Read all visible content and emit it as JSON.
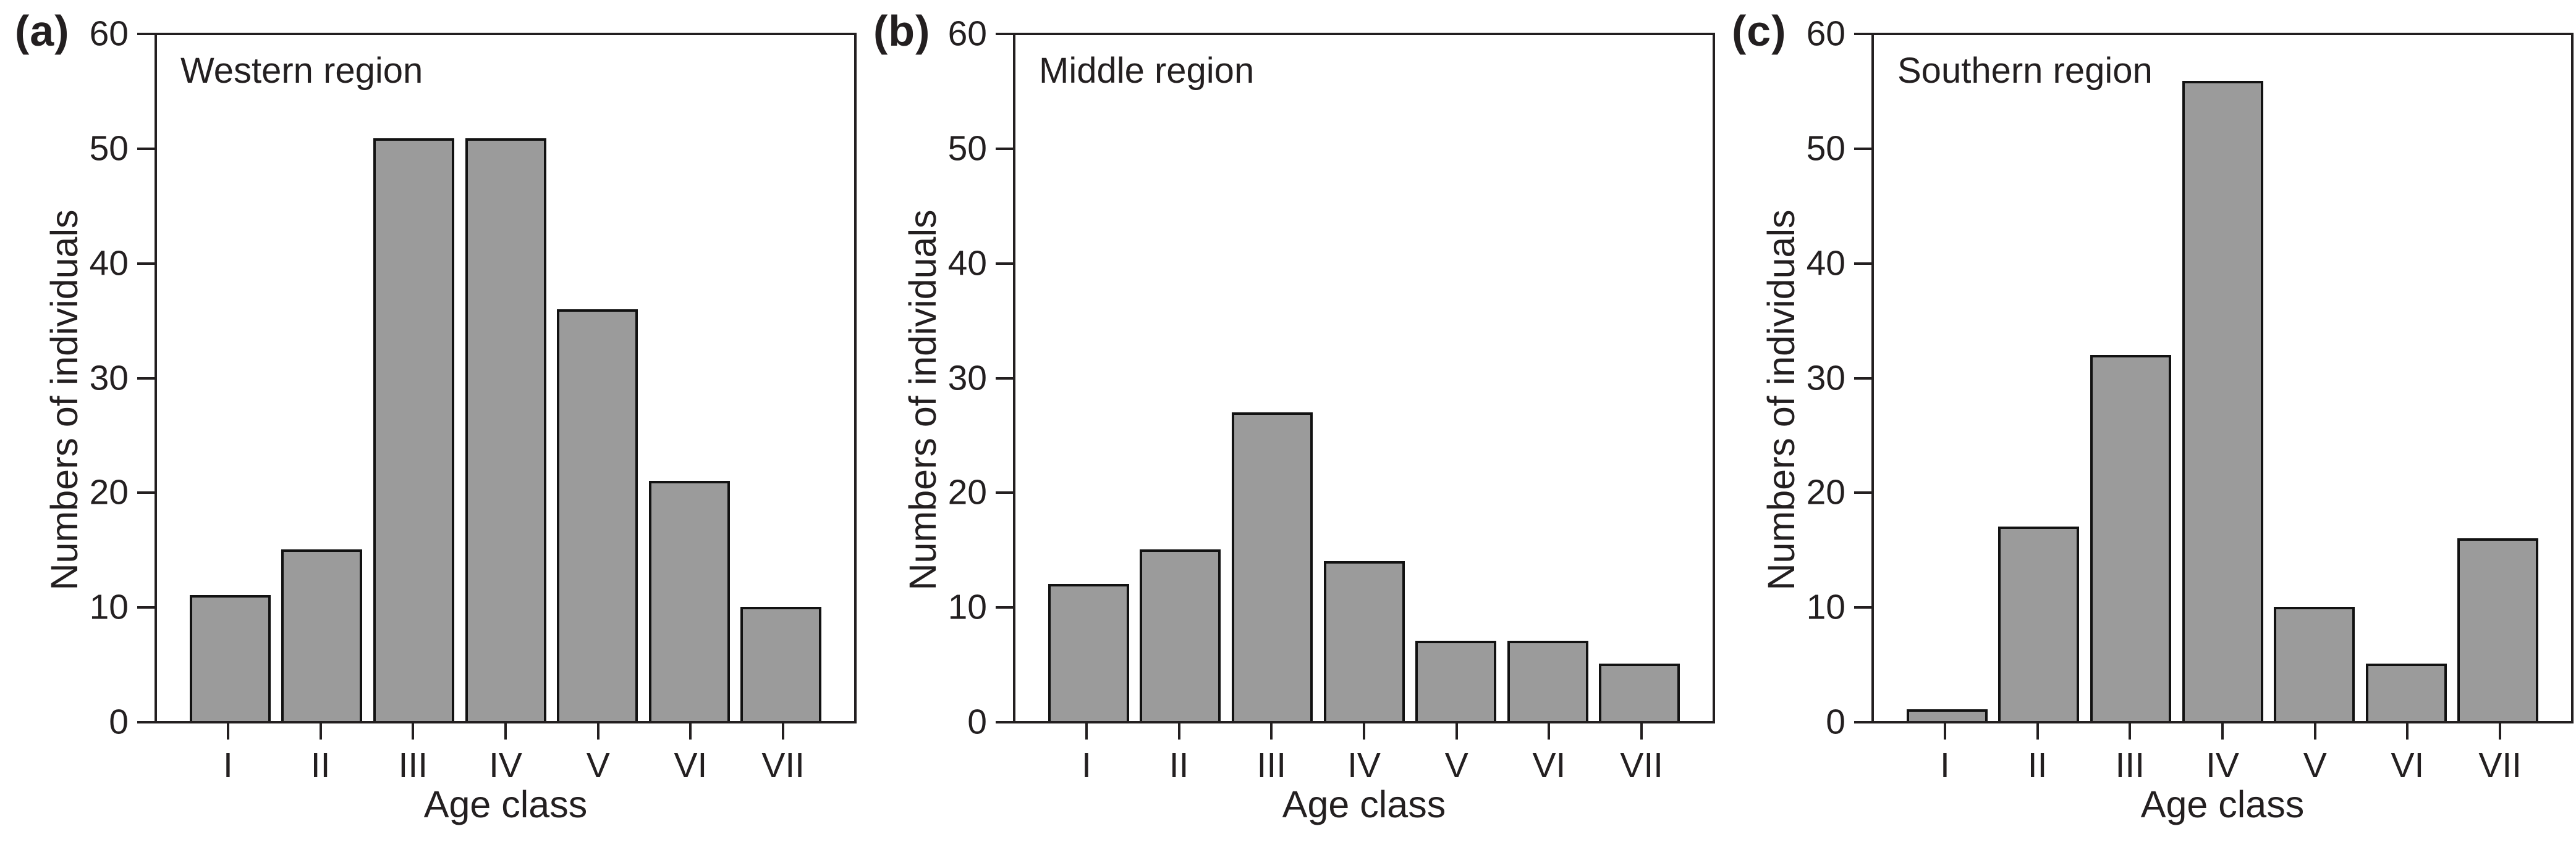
{
  "chart_data": [
    {
      "type": "bar",
      "panel_label": "(a)",
      "title": "Western region",
      "categories": [
        "I",
        "II",
        "III",
        "IV",
        "V",
        "VI",
        "VII"
      ],
      "values": [
        11,
        15,
        51,
        51,
        36,
        21,
        10
      ],
      "xlabel": "Age class",
      "ylabel": "Numbers of individuals",
      "ylim": [
        0,
        60
      ],
      "y_ticks": [
        0,
        10,
        20,
        30,
        40,
        50,
        60
      ],
      "grid": false,
      "legend": false
    },
    {
      "type": "bar",
      "panel_label": "(b)",
      "title": "Middle region",
      "categories": [
        "I",
        "II",
        "III",
        "IV",
        "V",
        "VI",
        "VII"
      ],
      "values": [
        12,
        15,
        27,
        14,
        7,
        7,
        5
      ],
      "xlabel": "Age class",
      "ylabel": "Numbers of individuals",
      "ylim": [
        0,
        60
      ],
      "y_ticks": [
        0,
        10,
        20,
        30,
        40,
        50,
        60
      ],
      "grid": false,
      "legend": false
    },
    {
      "type": "bar",
      "panel_label": "(c)",
      "title": "Southern region",
      "categories": [
        "I",
        "II",
        "III",
        "IV",
        "V",
        "VI",
        "VII"
      ],
      "values": [
        1,
        17,
        32,
        56,
        10,
        5,
        16
      ],
      "xlabel": "Age class",
      "ylabel": "Numbers of individuals",
      "ylim": [
        0,
        60
      ],
      "y_ticks": [
        0,
        10,
        20,
        30,
        40,
        50,
        60
      ],
      "grid": false,
      "legend": false
    }
  ],
  "styles": {
    "bar_fill": "#9b9b9b",
    "bar_border": "#121212",
    "axis_color": "#231f20",
    "text_color": "#231f20",
    "background": "#ffffff"
  }
}
